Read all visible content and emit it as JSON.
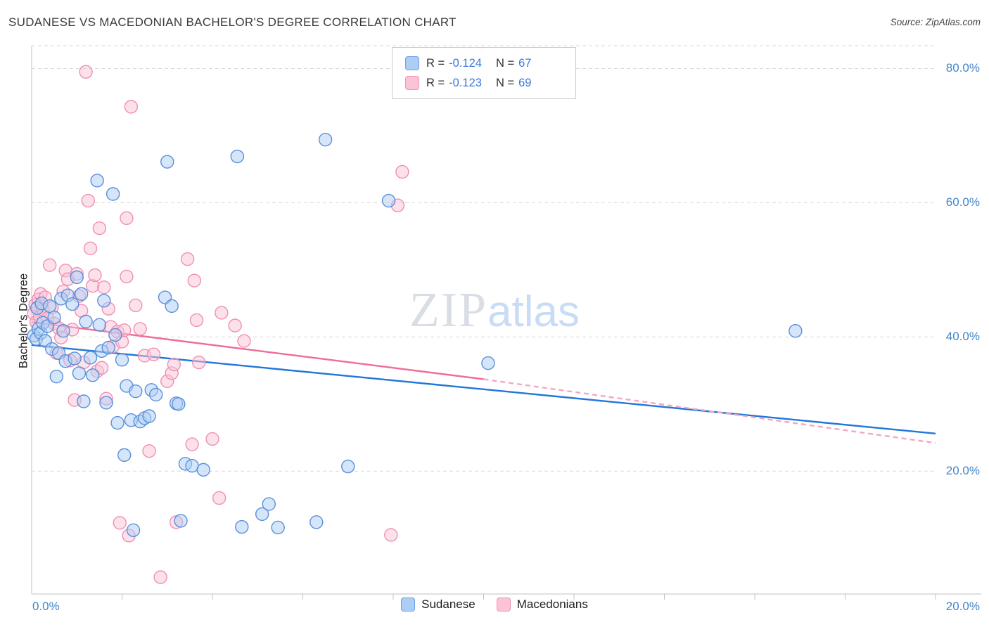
{
  "header": {
    "title": "SUDANESE VS MACEDONIAN BACHELOR'S DEGREE CORRELATION CHART",
    "source": "Source: ZipAtlas.com"
  },
  "watermark": {
    "part1": "ZIP",
    "part2": "atlas"
  },
  "axes": {
    "y_label": "Bachelor's Degree",
    "x_min_label": "0.0%",
    "x_max_label": "20.0%"
  },
  "legend_box": {
    "rows": [
      {
        "series": "Sudanese",
        "r_label": "R =",
        "r_value": "-0.124",
        "n_label": "N =",
        "n_value": "67"
      },
      {
        "series": "Macedonians",
        "r_label": "R =",
        "r_value": "-0.123",
        "n_label": "N =",
        "n_value": "69"
      }
    ]
  },
  "bottom_legend": {
    "items": [
      {
        "label": "Sudanese"
      },
      {
        "label": "Macedonians"
      }
    ]
  },
  "chart_data": {
    "type": "scatter",
    "title": "SUDANESE VS MACEDONIAN BACHELOR'S DEGREE CORRELATION CHART",
    "xlabel": "",
    "ylabel": "Bachelor's Degree",
    "units": "percent",
    "xlim": [
      0,
      20
    ],
    "ylim": [
      1.7,
      83.4
    ],
    "x_tick_step": 2,
    "y_gridlines": [
      20,
      40,
      60,
      80
    ],
    "grid": "horizontal-dashed",
    "legend_position": "top-center and bottom-center",
    "y_ticks": [
      {
        "value": 80,
        "label": "80.0%"
      },
      {
        "value": 60,
        "label": "60.0%"
      },
      {
        "value": 40,
        "label": "40.0%"
      },
      {
        "value": 20,
        "label": "20.0%"
      }
    ],
    "series": [
      {
        "name": "Sudanese",
        "R": -0.124,
        "N": 67,
        "fill": "#aecdf5",
        "stroke": "#5b8fd9",
        "points": [
          [
            0.05,
            40.2
          ],
          [
            0.1,
            39.7
          ],
          [
            0.12,
            44.3
          ],
          [
            0.15,
            41.2
          ],
          [
            0.2,
            40.6
          ],
          [
            0.22,
            45.0
          ],
          [
            0.25,
            42.1
          ],
          [
            0.3,
            39.4
          ],
          [
            0.35,
            41.6
          ],
          [
            0.4,
            44.6
          ],
          [
            0.45,
            38.2
          ],
          [
            0.5,
            42.9
          ],
          [
            0.55,
            34.1
          ],
          [
            0.6,
            37.6
          ],
          [
            0.65,
            45.7
          ],
          [
            0.7,
            40.9
          ],
          [
            0.75,
            36.4
          ],
          [
            0.8,
            46.2
          ],
          [
            0.9,
            44.9
          ],
          [
            0.95,
            36.8
          ],
          [
            1.0,
            48.9
          ],
          [
            1.05,
            34.6
          ],
          [
            1.1,
            46.4
          ],
          [
            1.15,
            30.4
          ],
          [
            1.2,
            42.3
          ],
          [
            1.3,
            36.9
          ],
          [
            1.35,
            34.3
          ],
          [
            1.45,
            63.3
          ],
          [
            1.5,
            41.8
          ],
          [
            1.55,
            37.9
          ],
          [
            1.6,
            45.4
          ],
          [
            1.65,
            30.2
          ],
          [
            1.7,
            38.4
          ],
          [
            1.8,
            61.3
          ],
          [
            1.85,
            40.3
          ],
          [
            1.9,
            27.2
          ],
          [
            2.0,
            36.6
          ],
          [
            2.05,
            22.4
          ],
          [
            2.1,
            32.7
          ],
          [
            2.2,
            27.6
          ],
          [
            2.25,
            11.2
          ],
          [
            2.3,
            31.9
          ],
          [
            2.4,
            27.4
          ],
          [
            2.5,
            27.9
          ],
          [
            2.6,
            28.2
          ],
          [
            2.65,
            32.1
          ],
          [
            2.75,
            31.4
          ],
          [
            3.0,
            66.1
          ],
          [
            2.95,
            45.9
          ],
          [
            3.1,
            44.6
          ],
          [
            3.2,
            30.1
          ],
          [
            3.25,
            30.0
          ],
          [
            3.3,
            12.6
          ],
          [
            3.4,
            21.1
          ],
          [
            3.55,
            20.8
          ],
          [
            3.8,
            20.2
          ],
          [
            4.55,
            66.9
          ],
          [
            4.65,
            11.7
          ],
          [
            5.1,
            13.6
          ],
          [
            5.25,
            15.1
          ],
          [
            5.45,
            11.6
          ],
          [
            6.3,
            12.4
          ],
          [
            6.5,
            69.4
          ],
          [
            7.0,
            20.7
          ],
          [
            7.9,
            60.3
          ],
          [
            10.1,
            36.1
          ],
          [
            16.9,
            40.9
          ]
        ]
      },
      {
        "name": "Macedonians",
        "R": -0.123,
        "N": 69,
        "fill": "#fac4d6",
        "stroke": "#ef8fb4",
        "points": [
          [
            0.05,
            43.5
          ],
          [
            0.08,
            44.8
          ],
          [
            0.1,
            42.2
          ],
          [
            0.15,
            45.6
          ],
          [
            0.18,
            43.0
          ],
          [
            0.2,
            46.4
          ],
          [
            0.25,
            44.1
          ],
          [
            0.3,
            45.9
          ],
          [
            0.35,
            42.8
          ],
          [
            0.4,
            50.7
          ],
          [
            0.45,
            44.4
          ],
          [
            0.5,
            42.0
          ],
          [
            0.55,
            37.6
          ],
          [
            0.6,
            41.3
          ],
          [
            0.65,
            39.9
          ],
          [
            0.7,
            46.8
          ],
          [
            0.75,
            49.9
          ],
          [
            0.8,
            48.6
          ],
          [
            0.85,
            36.5
          ],
          [
            0.9,
            41.1
          ],
          [
            0.95,
            30.6
          ],
          [
            1.0,
            49.4
          ],
          [
            1.05,
            46.1
          ],
          [
            1.1,
            43.9
          ],
          [
            1.15,
            36.2
          ],
          [
            1.2,
            79.5
          ],
          [
            1.25,
            60.3
          ],
          [
            1.3,
            53.2
          ],
          [
            1.35,
            47.6
          ],
          [
            1.4,
            49.2
          ],
          [
            1.45,
            34.9
          ],
          [
            1.5,
            56.2
          ],
          [
            1.55,
            35.4
          ],
          [
            1.6,
            47.4
          ],
          [
            1.65,
            30.8
          ],
          [
            1.7,
            44.2
          ],
          [
            1.75,
            41.5
          ],
          [
            1.8,
            38.6
          ],
          [
            1.9,
            40.8
          ],
          [
            1.95,
            12.3
          ],
          [
            2.0,
            39.3
          ],
          [
            2.05,
            41.0
          ],
          [
            2.1,
            57.7
          ],
          [
            2.15,
            10.4
          ],
          [
            2.2,
            74.3
          ],
          [
            2.3,
            44.7
          ],
          [
            2.4,
            41.2
          ],
          [
            2.5,
            37.2
          ],
          [
            2.6,
            23.0
          ],
          [
            2.7,
            37.4
          ],
          [
            2.85,
            4.2
          ],
          [
            3.0,
            33.4
          ],
          [
            3.1,
            34.6
          ],
          [
            3.2,
            12.4
          ],
          [
            3.45,
            51.6
          ],
          [
            3.6,
            48.4
          ],
          [
            3.65,
            42.5
          ],
          [
            3.7,
            36.2
          ],
          [
            4.2,
            43.6
          ],
          [
            3.15,
            35.9
          ],
          [
            3.55,
            24.0
          ],
          [
            4.0,
            24.8
          ],
          [
            4.15,
            16.0
          ],
          [
            4.5,
            41.7
          ],
          [
            4.7,
            39.4
          ],
          [
            8.2,
            64.6
          ],
          [
            8.1,
            59.6
          ],
          [
            2.1,
            49.0
          ],
          [
            7.95,
            10.5
          ]
        ]
      }
    ],
    "trend_lines": [
      {
        "series": "Sudanese",
        "color": "#2176d9",
        "x1": 0,
        "y1": 38.8,
        "x2": 20,
        "y2": 25.6,
        "dash": false
      },
      {
        "series": "Macedonians",
        "color": "#ef6b9b",
        "x1": 0,
        "y1": 42.2,
        "x2": 10,
        "y2": 33.7,
        "dash": false
      },
      {
        "series": "Macedonians-extrapolated",
        "color": "#f4a7c1",
        "x1": 10,
        "y1": 33.7,
        "x2": 20,
        "y2": 24.2,
        "dash": true
      }
    ]
  }
}
